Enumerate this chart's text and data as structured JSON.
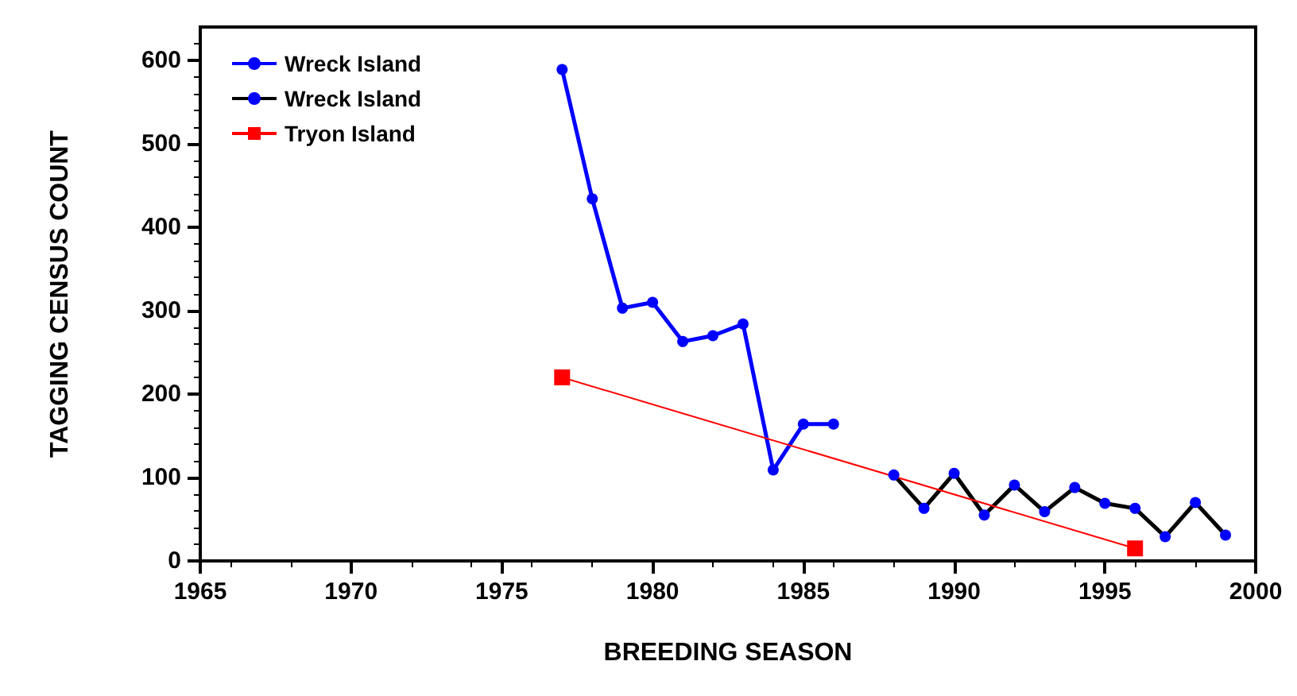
{
  "chart_data": {
    "type": "line",
    "xlabel": "BREEDING SEASON",
    "ylabel": "TAGGING CENSUS COUNT",
    "xlim": [
      1965,
      2000
    ],
    "xticks": [
      1965,
      1970,
      1975,
      1980,
      1985,
      1990,
      1995,
      2000
    ],
    "ylim": [
      0,
      640
    ],
    "yticks": [
      0,
      100,
      200,
      300,
      400,
      500,
      600
    ],
    "legend": "top left",
    "grid": false,
    "marker": "circle",
    "line_style": "solid",
    "series": [
      {
        "name": "Wreck Island",
        "color": "#0000ff",
        "x": [
          1977,
          1978,
          1979,
          1980,
          1981,
          1982,
          1983,
          1984,
          1985,
          1986
        ],
        "values": [
          589,
          434,
          303,
          310,
          263,
          270,
          284,
          109,
          164,
          164
        ]
      },
      {
        "name": "Wreck Island",
        "color": "#000000",
        "x": [
          1988,
          1989,
          1990,
          1991,
          1992,
          1993,
          1994,
          1995,
          1996,
          1997,
          1998,
          1999
        ],
        "values": [
          103,
          63,
          105,
          55,
          91,
          59,
          88,
          69,
          63,
          29,
          70,
          31
        ]
      },
      {
        "name": "Tryon Island",
        "color": "#ff0000",
        "marker": "square",
        "x": [
          1977,
          1996
        ],
        "values": [
          220,
          15
        ]
      }
    ]
  }
}
